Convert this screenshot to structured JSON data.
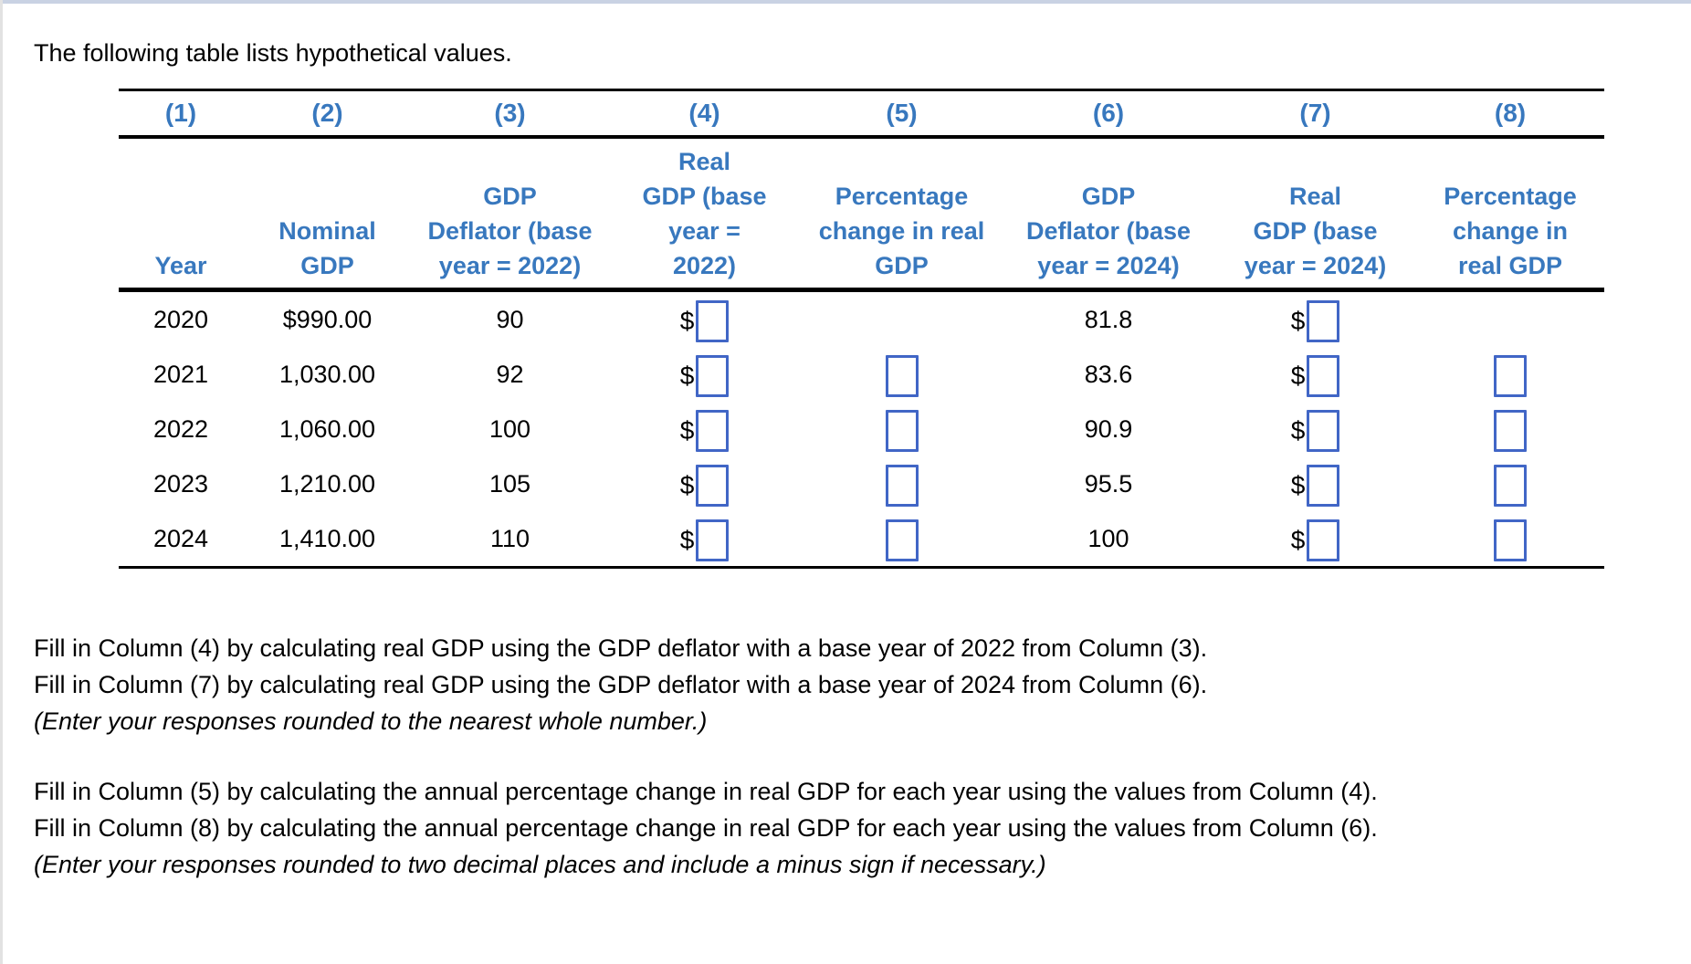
{
  "page": {
    "intro": "The following table lists hypothetical values.",
    "instructions": [
      {
        "lines": [
          "Fill in Column (4) by calculating real GDP using the GDP deflator with a base year of 2022 from Column (3).",
          "Fill in Column (7) by calculating real GDP using the GDP deflator with a base year of 2024 from Column (6)."
        ],
        "note": "(Enter your responses rounded to the nearest whole number.)"
      },
      {
        "lines": [
          "Fill in Column (5) by calculating the annual percentage change in real GDP for each year using the values from Column (4).",
          "Fill in Column (8) by calculating the annual percentage change in real GDP for each year using the values from Column (6)."
        ],
        "note": "(Enter your responses rounded to two decimal places and include a minus sign if necessary.)"
      }
    ]
  },
  "table": {
    "currency_symbol": "$",
    "column_numbers": [
      "(1)",
      "(2)",
      "(3)",
      "(4)",
      "(5)",
      "(6)",
      "(7)",
      "(8)"
    ],
    "headers": [
      "Year",
      "Nominal\nGDP",
      "GDP\nDeflator (base\nyear = 2022)",
      "Real\nGDP (base\nyear =\n2022)",
      "Percentage\nchange in real\nGDP",
      "GDP\nDeflator (base\nyear = 2024)",
      "Real\nGDP (base\nyear = 2024)",
      "Percentage\nchange in\nreal GDP"
    ],
    "rows": [
      {
        "year": "2020",
        "nominal_gdp": "$990.00",
        "deflator_2022": "90",
        "deflator_2024": "81.8"
      },
      {
        "year": "2021",
        "nominal_gdp": "1,030.00",
        "deflator_2022": "92",
        "deflator_2024": "83.6"
      },
      {
        "year": "2022",
        "nominal_gdp": "1,060.00",
        "deflator_2022": "100",
        "deflator_2024": "90.9"
      },
      {
        "year": "2023",
        "nominal_gdp": "1,210.00",
        "deflator_2022": "105",
        "deflator_2024": "95.5"
      },
      {
        "year": "2024",
        "nominal_gdp": "1,410.00",
        "deflator_2022": "110",
        "deflator_2024": "100"
      }
    ],
    "colors": {
      "header_blue": "#3878BE",
      "input_border_blue": "#4166C6",
      "rule_black": "#000000",
      "top_edge_line": "#c9d2e3"
    }
  }
}
